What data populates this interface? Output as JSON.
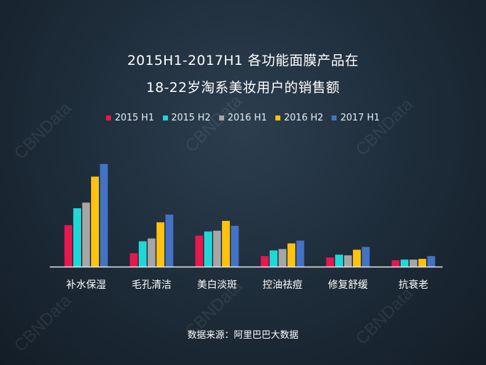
{
  "title_line1": "2015H1-2017H1 各功能面膜产品在",
  "title_line2": "18-22岁淘系美妆用户的销售额",
  "source": "数据来源：阿里巴巴大数据",
  "watermark": "CBNData",
  "colors": {
    "2015 H1": "#e8174f",
    "2015 H2": "#1ed8d8",
    "2016 H1": "#a6a6a6",
    "2016 H2": "#ffc20e",
    "2017 H1": "#4472c4"
  },
  "chart_data": {
    "type": "bar",
    "categories": [
      "补水保湿",
      "毛孔清洁",
      "美白淡斑",
      "控油祛痘",
      "修复舒缓",
      "抗衰老"
    ],
    "series": [
      {
        "name": "2015 H1",
        "values": [
          59,
          19,
          44,
          15,
          13,
          9
        ]
      },
      {
        "name": "2015 H2",
        "values": [
          83,
          36,
          50,
          23,
          17,
          10
        ]
      },
      {
        "name": "2016 H1",
        "values": [
          91,
          40,
          51,
          25,
          16,
          10
        ]
      },
      {
        "name": "2016 H2",
        "values": [
          128,
          63,
          65,
          33,
          24,
          11
        ]
      },
      {
        "name": "2017 H1",
        "values": [
          146,
          74,
          58,
          37,
          28,
          15
        ]
      }
    ],
    "ylim": [
      0,
      150
    ],
    "grid": false,
    "legend_position": "top"
  }
}
